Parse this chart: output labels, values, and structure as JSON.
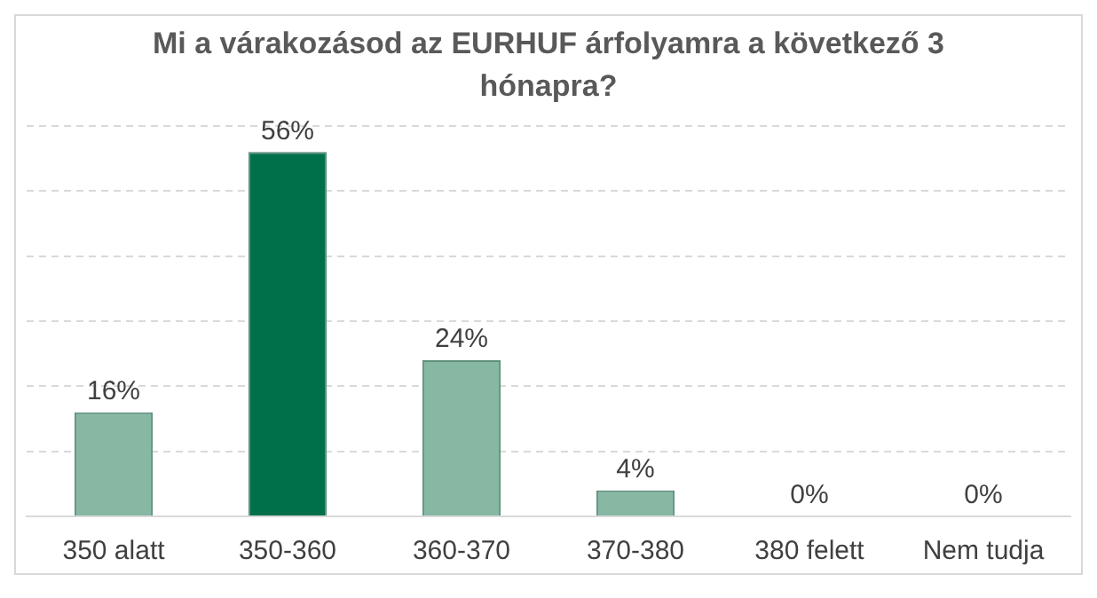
{
  "chart_data": {
    "type": "bar",
    "title": "Mi a várakozásod az EURHUF árfolyamra a következő 3 hónapra?",
    "categories": [
      "350 alatt",
      "350-360",
      "360-370",
      "370-380",
      "380 felett",
      "Nem tudja"
    ],
    "values": [
      16,
      56,
      24,
      4,
      0,
      0
    ],
    "value_labels": [
      "16%",
      "56%",
      "24%",
      "4%",
      "0%",
      "0%"
    ],
    "colors": [
      "#86b8a4",
      "#00704a",
      "#86b8a4",
      "#86b8a4",
      "#86b8a4",
      "#86b8a4"
    ],
    "ylim": [
      0,
      60
    ],
    "yticks": [
      {
        "value": 0,
        "label": null
      },
      {
        "value": 10,
        "label": null
      },
      {
        "value": 20,
        "label": null
      },
      {
        "value": 30,
        "label": null
      },
      {
        "value": 40,
        "label": null
      },
      {
        "value": 50,
        "label": null
      },
      {
        "value": 60,
        "label": null
      }
    ],
    "grid": "y",
    "tick_labels": "x",
    "legend": false
  }
}
